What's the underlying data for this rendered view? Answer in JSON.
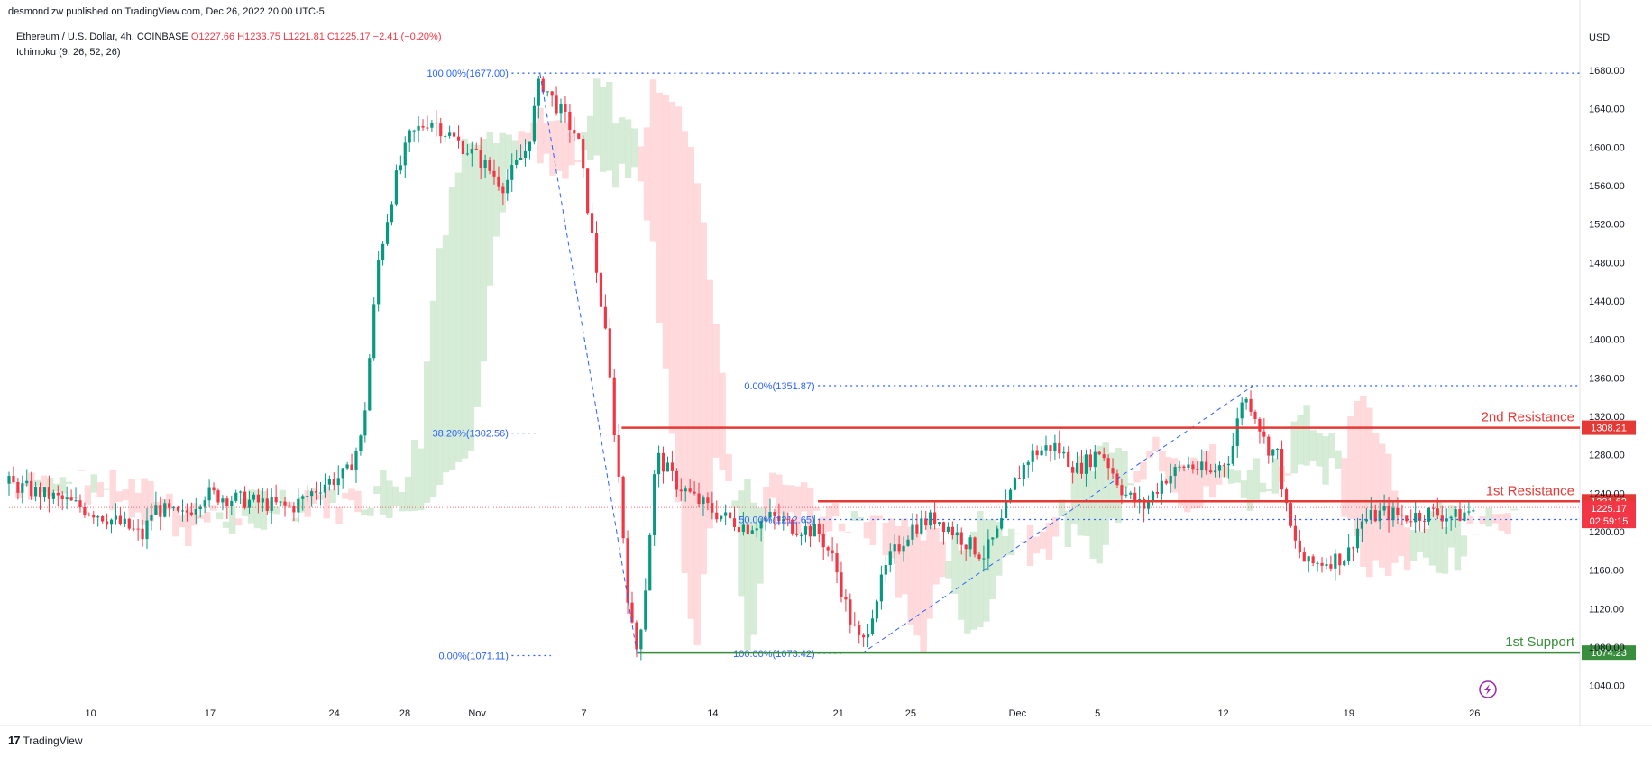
{
  "caption": "desmondlzw published on TradingView.com, Dec 26, 2022 20:00 UTC-5",
  "legend": {
    "symbol": "Ethereum / U.S. Dollar, 4h, COINBASE",
    "ohlc": "O1227.66 H1233.75 L1221.81 C1225.17 −2.41 (−0.20%)",
    "indicator": "Ichimoku (9, 26, 52, 26)"
  },
  "brand": {
    "logo": "17",
    "name": "TradingView"
  },
  "currency": "USD",
  "icons": [
    "lightning-icon",
    "tradingview-logo-icon"
  ],
  "colors": {
    "up": "#089981",
    "down": "#f23645",
    "fib": "#2962ff",
    "resistance": "#e53935",
    "support": "#388e3c",
    "cloud_up": "#c8e6c9",
    "cloud_down": "#ffcdd2"
  },
  "chart_data": {
    "type": "candlestick",
    "yrange": [
      1020,
      1695
    ],
    "y_ticks": [
      1040,
      1080,
      1120,
      1160,
      1200,
      1240,
      1280,
      1320,
      1360,
      1400,
      1440,
      1480,
      1520,
      1560,
      1600,
      1640,
      1680
    ],
    "y_tick_labels": [
      "1040.00",
      "1080.00",
      "1120.00",
      "1160.00",
      "1200.00",
      "1240.00",
      "1280.00",
      "1320.00",
      "1360.00",
      "1400.00",
      "1440.00",
      "1480.00",
      "1520.00",
      "1560.00",
      "1600.00",
      "1640.00",
      "1680.00"
    ],
    "x_ticks": [
      "10",
      "17",
      "24",
      "28",
      "Nov",
      "7",
      "14",
      "21",
      "25",
      "Dec",
      "5",
      "12",
      "19",
      "26"
    ],
    "x_tick_pos": [
      0.052,
      0.128,
      0.207,
      0.252,
      0.298,
      0.366,
      0.448,
      0.528,
      0.574,
      0.642,
      0.693,
      0.773,
      0.853,
      0.933
    ],
    "price_path": [
      [
        0.0,
        1250
      ],
      [
        0.03,
        1235
      ],
      [
        0.055,
        1220
      ],
      [
        0.075,
        1205
      ],
      [
        0.085,
        1195
      ],
      [
        0.092,
        1225
      ],
      [
        0.11,
        1215
      ],
      [
        0.125,
        1240
      ],
      [
        0.14,
        1235
      ],
      [
        0.16,
        1230
      ],
      [
        0.18,
        1225
      ],
      [
        0.2,
        1250
      ],
      [
        0.215,
        1260
      ],
      [
        0.225,
        1300
      ],
      [
        0.235,
        1480
      ],
      [
        0.245,
        1560
      ],
      [
        0.255,
        1610
      ],
      [
        0.268,
        1630
      ],
      [
        0.282,
        1610
      ],
      [
        0.298,
        1590
      ],
      [
        0.315,
        1560
      ],
      [
        0.33,
        1600
      ],
      [
        0.338,
        1670
      ],
      [
        0.35,
        1640
      ],
      [
        0.362,
        1610
      ],
      [
        0.37,
        1520
      ],
      [
        0.38,
        1400
      ],
      [
        0.388,
        1260
      ],
      [
        0.395,
        1110
      ],
      [
        0.4,
        1075
      ],
      [
        0.405,
        1140
      ],
      [
        0.412,
        1280
      ],
      [
        0.425,
        1250
      ],
      [
        0.44,
        1230
      ],
      [
        0.455,
        1215
      ],
      [
        0.47,
        1205
      ],
      [
        0.485,
        1215
      ],
      [
        0.5,
        1205
      ],
      [
        0.515,
        1200
      ],
      [
        0.525,
        1170
      ],
      [
        0.535,
        1110
      ],
      [
        0.543,
        1080
      ],
      [
        0.55,
        1120
      ],
      [
        0.56,
        1170
      ],
      [
        0.575,
        1205
      ],
      [
        0.59,
        1215
      ],
      [
        0.605,
        1195
      ],
      [
        0.62,
        1175
      ],
      [
        0.63,
        1200
      ],
      [
        0.64,
        1250
      ],
      [
        0.65,
        1280
      ],
      [
        0.665,
        1290
      ],
      [
        0.68,
        1265
      ],
      [
        0.695,
        1285
      ],
      [
        0.71,
        1240
      ],
      [
        0.722,
        1225
      ],
      [
        0.735,
        1255
      ],
      [
        0.75,
        1270
      ],
      [
        0.765,
        1260
      ],
      [
        0.778,
        1280
      ],
      [
        0.785,
        1340
      ],
      [
        0.792,
        1330
      ],
      [
        0.8,
        1290
      ],
      [
        0.808,
        1280
      ],
      [
        0.812,
        1230
      ],
      [
        0.818,
        1190
      ],
      [
        0.826,
        1165
      ],
      [
        0.84,
        1170
      ],
      [
        0.852,
        1175
      ],
      [
        0.86,
        1210
      ],
      [
        0.875,
        1220
      ],
      [
        0.89,
        1215
      ],
      [
        0.905,
        1220
      ],
      [
        0.92,
        1215
      ],
      [
        0.935,
        1225
      ]
    ],
    "fib_levels": [
      {
        "label": "100.00%(1677.00)",
        "value": 1677.0
      },
      {
        "label": "38.20%(1302.56)",
        "value": 1302.56
      },
      {
        "label": "0.00%(1071.11)",
        "value": 1071.11
      },
      {
        "label": "0.00%(1351.87)",
        "value": 1351.87
      },
      {
        "label": "50.00%(1212.65)",
        "value": 1212.65
      },
      {
        "label": "100.00%(1073.42)",
        "value": 1073.42
      }
    ],
    "levels": [
      {
        "name": "2nd Resistance",
        "value": 1308.21,
        "label": "1308.21"
      },
      {
        "name": "1st Resistance",
        "value": 1231.62,
        "label": "1231.62"
      },
      {
        "name": "1st Support",
        "value": 1074.23,
        "label": "1074.23"
      }
    ],
    "last_price": {
      "value": 1225.17,
      "label": "1225.17",
      "countdown": "02:59:15"
    }
  }
}
